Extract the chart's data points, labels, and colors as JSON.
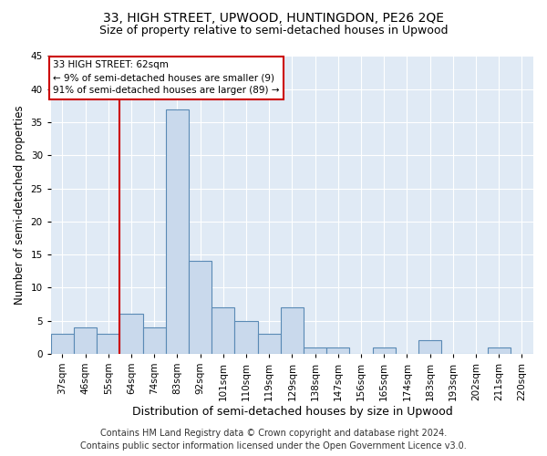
{
  "title": "33, HIGH STREET, UPWOOD, HUNTINGDON, PE26 2QE",
  "subtitle": "Size of property relative to semi-detached houses in Upwood",
  "xlabel": "Distribution of semi-detached houses by size in Upwood",
  "ylabel": "Number of semi-detached properties",
  "categories": [
    "37sqm",
    "46sqm",
    "55sqm",
    "64sqm",
    "74sqm",
    "83sqm",
    "92sqm",
    "101sqm",
    "110sqm",
    "119sqm",
    "129sqm",
    "138sqm",
    "147sqm",
    "156sqm",
    "165sqm",
    "174sqm",
    "183sqm",
    "193sqm",
    "202sqm",
    "211sqm",
    "220sqm"
  ],
  "values": [
    3,
    4,
    3,
    6,
    4,
    37,
    14,
    7,
    5,
    3,
    7,
    1,
    1,
    0,
    1,
    0,
    2,
    0,
    0,
    1,
    0
  ],
  "bar_color": "#c9d9ec",
  "bar_edge_color": "#5a8ab5",
  "red_line_x": 2.5,
  "annotation_text1": "33 HIGH STREET: 62sqm",
  "annotation_text2": "← 9% of semi-detached houses are smaller (9)",
  "annotation_text3": "91% of semi-detached houses are larger (89) →",
  "annotation_box_facecolor": "#ffffff",
  "annotation_box_edgecolor": "#cc0000",
  "red_line_color": "#cc0000",
  "ylim": [
    0,
    45
  ],
  "yticks": [
    0,
    5,
    10,
    15,
    20,
    25,
    30,
    35,
    40,
    45
  ],
  "grid_color": "#ffffff",
  "bg_color": "#e0eaf5",
  "footer1": "Contains HM Land Registry data © Crown copyright and database right 2024.",
  "footer2": "Contains public sector information licensed under the Open Government Licence v3.0.",
  "title_fontsize": 10,
  "subtitle_fontsize": 9,
  "ylabel_fontsize": 8.5,
  "xlabel_fontsize": 9,
  "tick_fontsize": 7.5,
  "ann_fontsize": 7.5,
  "footer_fontsize": 7
}
